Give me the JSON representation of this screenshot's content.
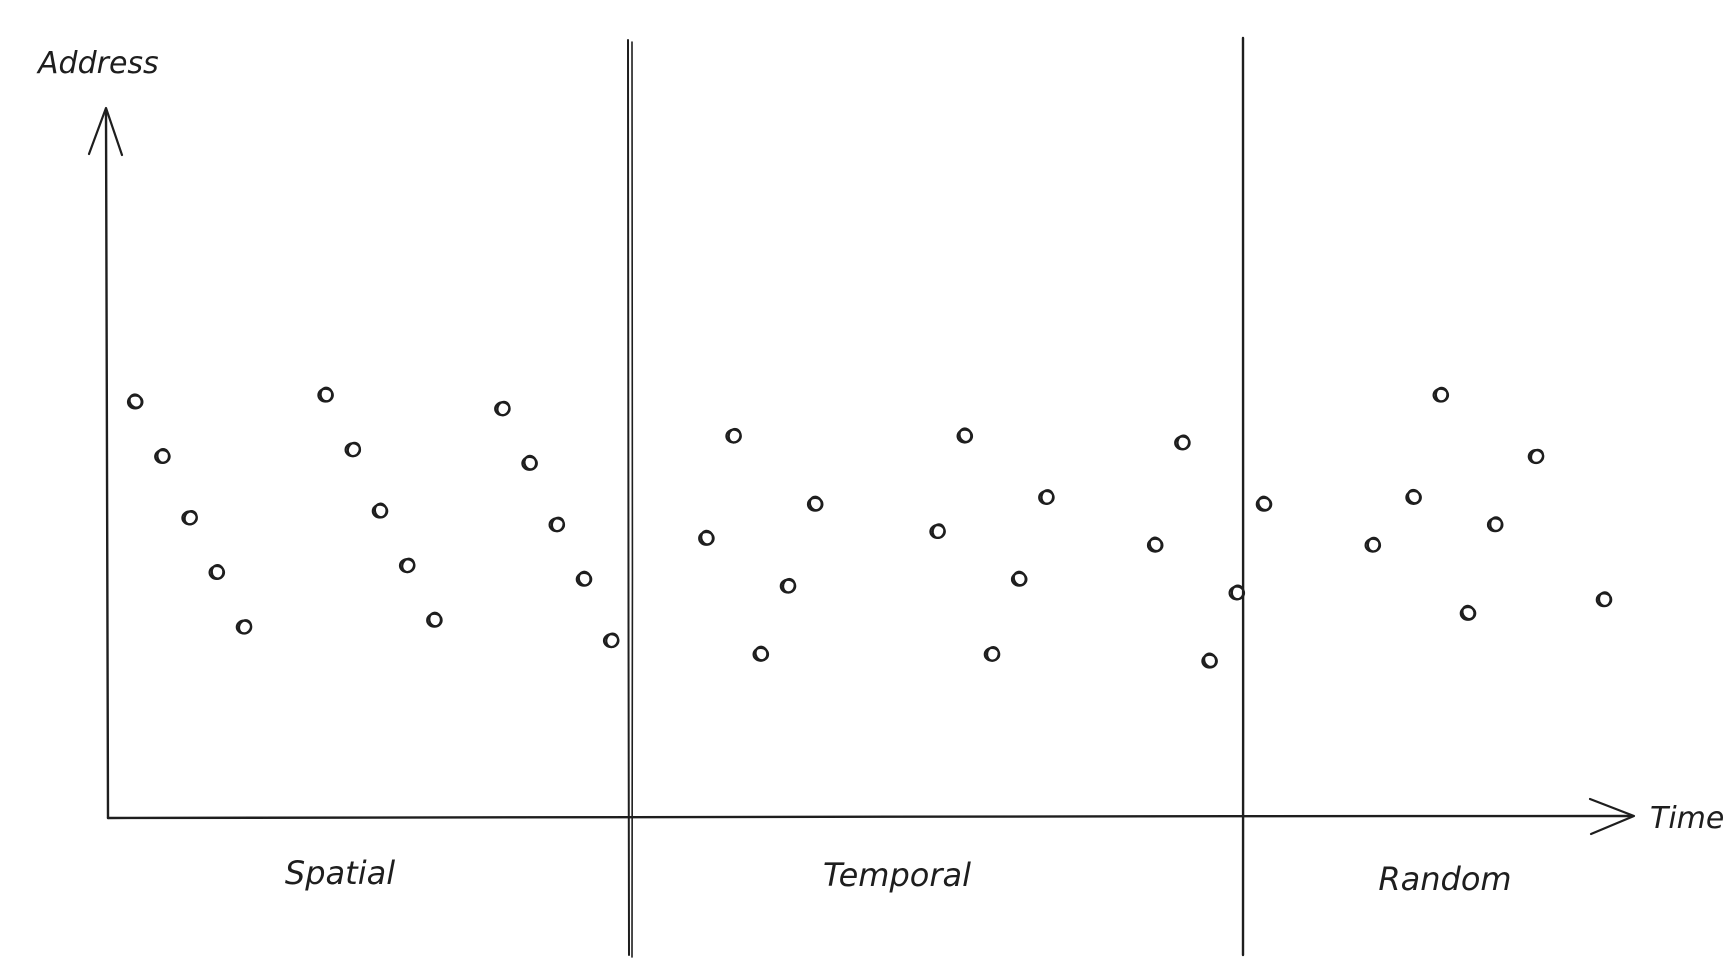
{
  "axes": {
    "y_label": "Address",
    "x_label": "Time"
  },
  "sections": [
    {
      "label": "Spatial",
      "points": [
        {
          "t": 1,
          "address": 6.1
        },
        {
          "t": 2,
          "address": 5.3
        },
        {
          "t": 3,
          "address": 4.4
        },
        {
          "t": 4,
          "address": 3.6
        },
        {
          "t": 5,
          "address": 2.8
        },
        {
          "t": 8,
          "address": 6.2
        },
        {
          "t": 9,
          "address": 5.4
        },
        {
          "t": 10,
          "address": 4.5
        },
        {
          "t": 11,
          "address": 3.7
        },
        {
          "t": 12,
          "address": 2.9
        },
        {
          "t": 14.5,
          "address": 6.0
        },
        {
          "t": 15.5,
          "address": 5.2
        },
        {
          "t": 16.5,
          "address": 4.3
        },
        {
          "t": 17.5,
          "address": 3.5
        },
        {
          "t": 18.5,
          "address": 2.6
        }
      ]
    },
    {
      "label": "Temporal",
      "points": [
        {
          "t": 22,
          "address": 4.1
        },
        {
          "t": 23,
          "address": 5.6
        },
        {
          "t": 24,
          "address": 2.4
        },
        {
          "t": 25,
          "address": 3.4
        },
        {
          "t": 26,
          "address": 4.6
        },
        {
          "t": 30.5,
          "address": 4.2
        },
        {
          "t": 31.5,
          "address": 5.6
        },
        {
          "t": 32.5,
          "address": 2.4
        },
        {
          "t": 33.5,
          "address": 3.5
        },
        {
          "t": 34.5,
          "address": 4.7
        },
        {
          "t": 38.5,
          "address": 4.0
        },
        {
          "t": 39.5,
          "address": 5.5
        },
        {
          "t": 40.5,
          "address": 2.3
        },
        {
          "t": 41.5,
          "address": 3.3
        },
        {
          "t": 42.5,
          "address": 4.6
        }
      ]
    },
    {
      "label": "Random",
      "points": [
        {
          "t": 46.5,
          "address": 4.0
        },
        {
          "t": 48,
          "address": 4.7
        },
        {
          "t": 49,
          "address": 6.2
        },
        {
          "t": 50,
          "address": 3.0
        },
        {
          "t": 51,
          "address": 4.3
        },
        {
          "t": 52.5,
          "address": 5.3
        },
        {
          "t": 55,
          "address": 3.2
        }
      ]
    }
  ],
  "colors": {
    "ink": "#1e1e1e",
    "background": "#ffffff"
  }
}
